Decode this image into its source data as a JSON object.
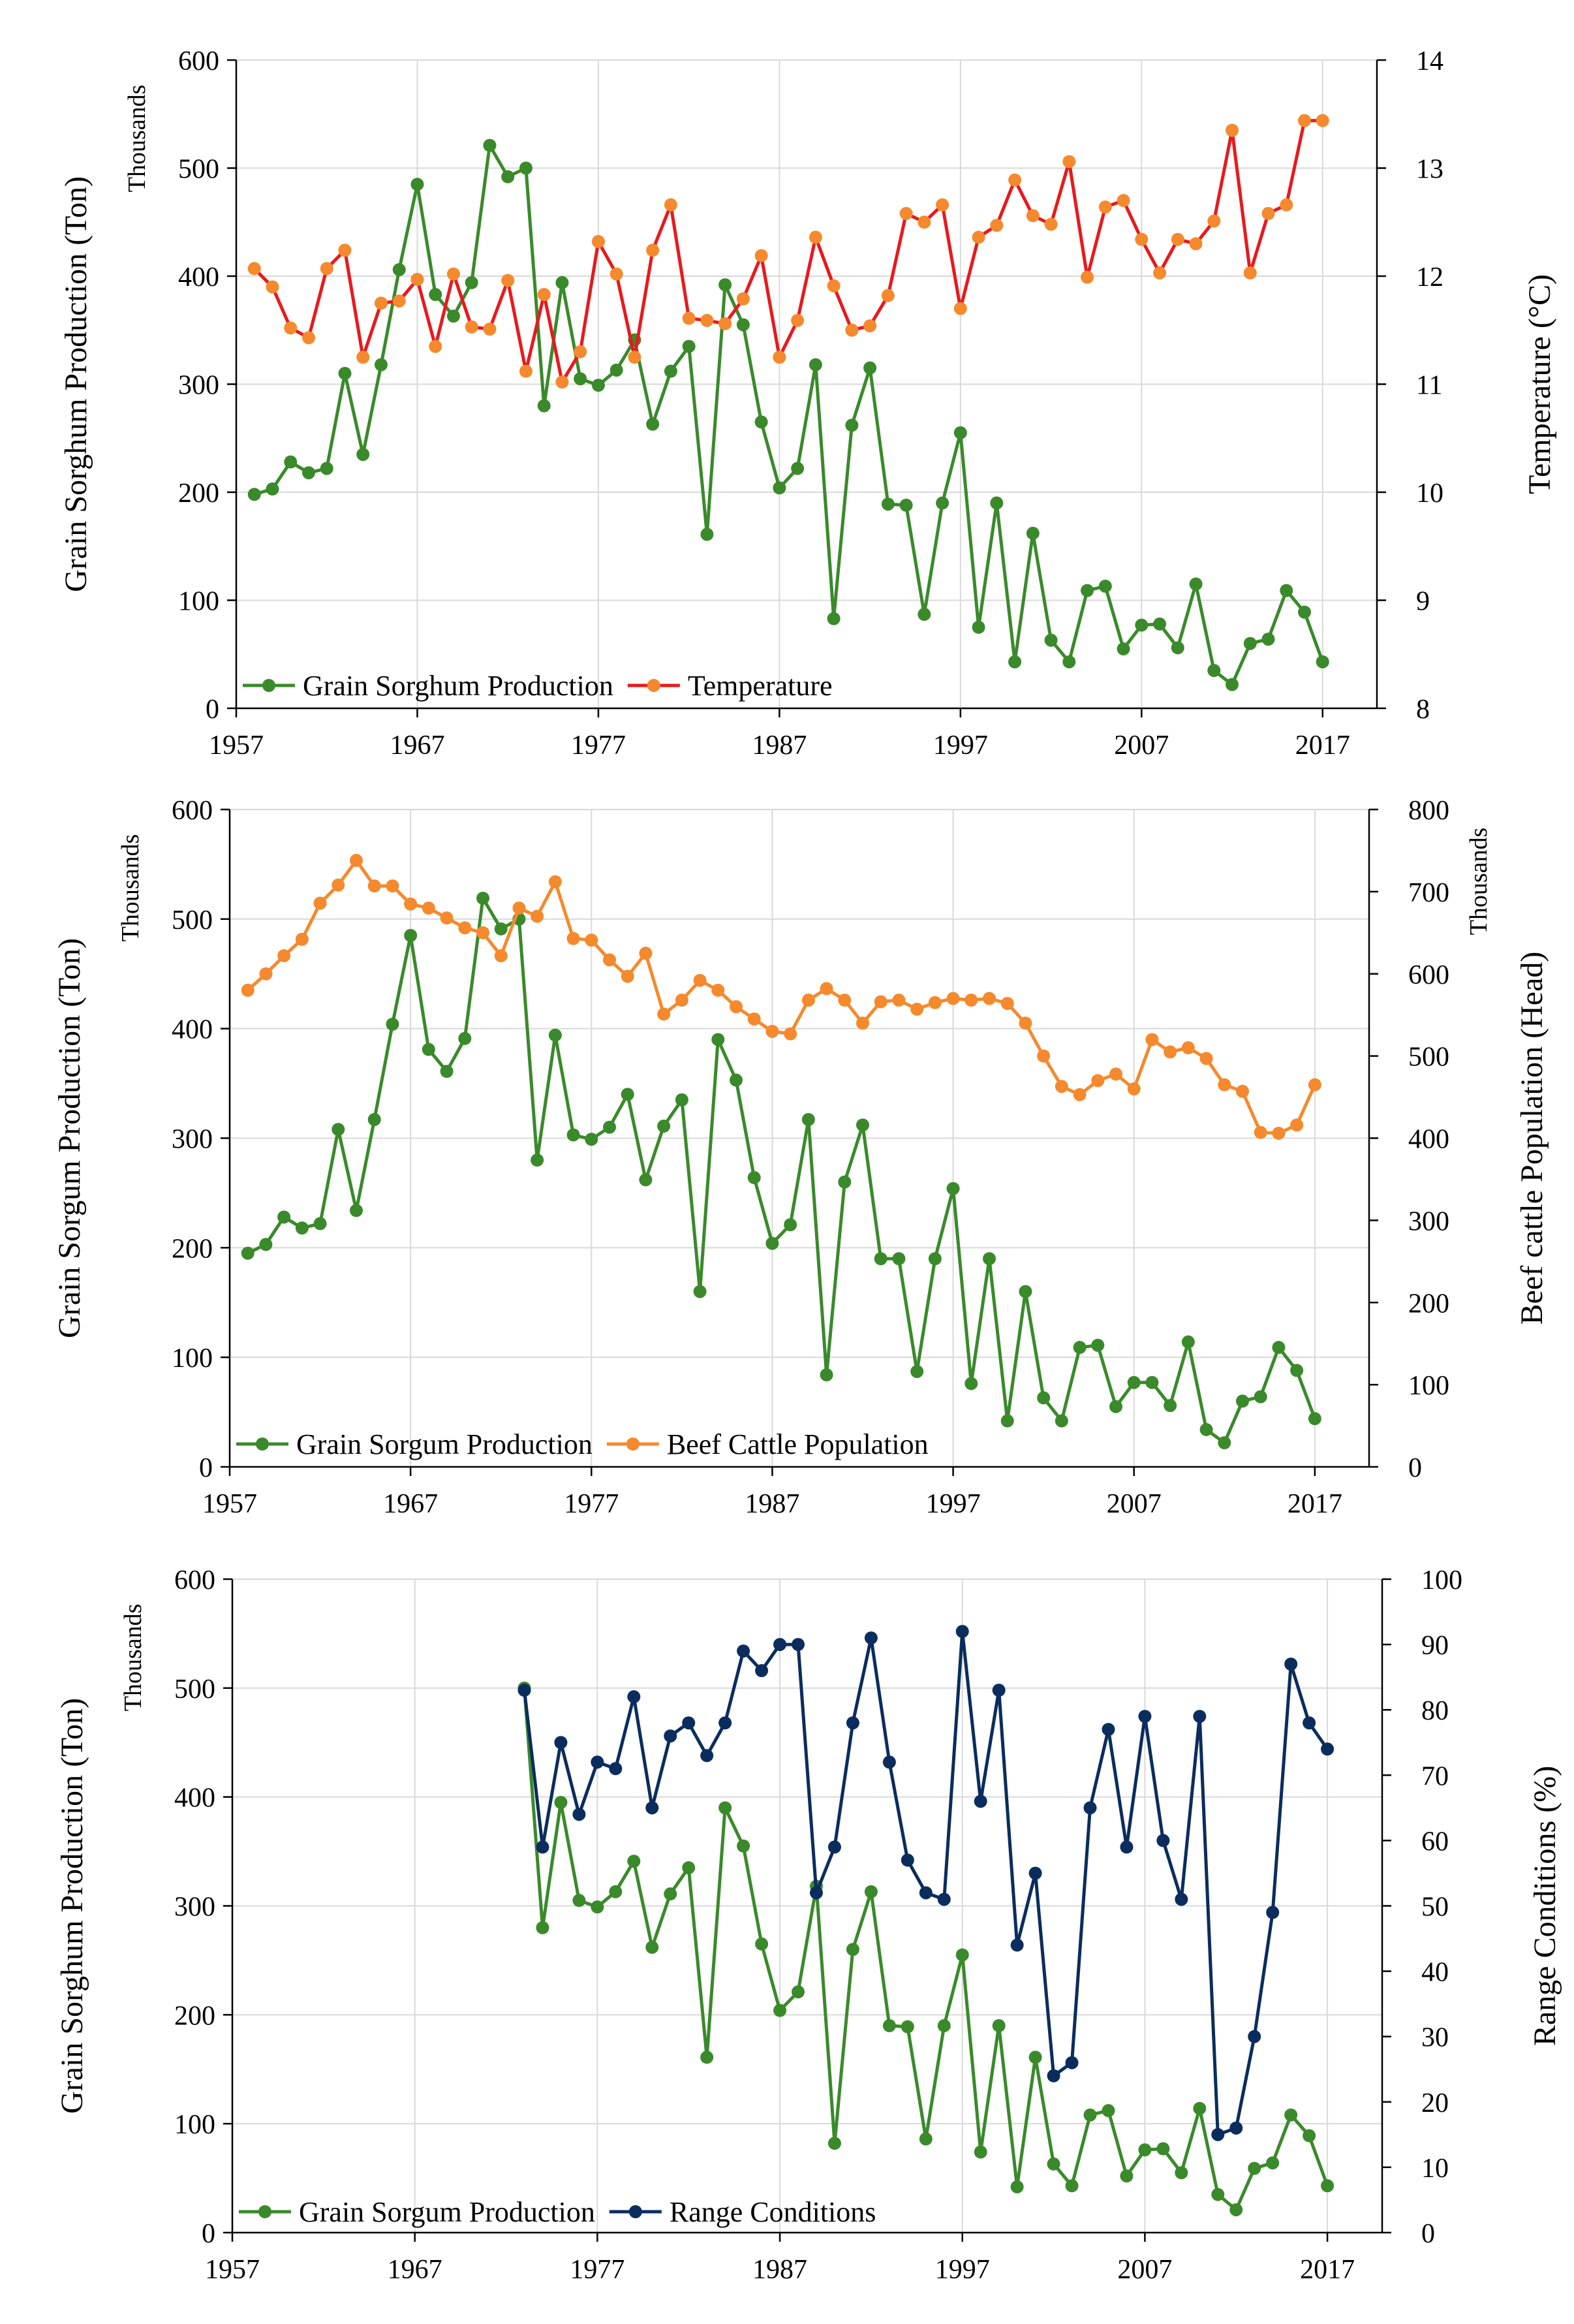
{
  "chart_data": [
    {
      "type": "line",
      "title": "",
      "xlabel": "",
      "ylabel": "Grain Sorghum  Production  (Ton)",
      "ylabel_units": "Thousands",
      "y2label": "Temperature  (°C)",
      "y2label_units": "",
      "xlim": [
        1957,
        2020
      ],
      "xticks": [
        1957,
        1967,
        1977,
        1987,
        1997,
        2007,
        2017
      ],
      "ylim": [
        0,
        600
      ],
      "yticks": [
        0,
        100,
        200,
        300,
        400,
        500,
        600
      ],
      "y2lim": [
        8,
        14
      ],
      "y2ticks": [
        8,
        9,
        10,
        11,
        12,
        13,
        14
      ],
      "legend_placement": "bottom-left",
      "series": [
        {
          "name": "Grain Sorghum Production",
          "axis": "left",
          "color": "#3a8a2b",
          "x": [
            1958,
            1959,
            1960,
            1961,
            1962,
            1963,
            1964,
            1965,
            1966,
            1967,
            1968,
            1969,
            1970,
            1971,
            1972,
            1973,
            1974,
            1975,
            1976,
            1977,
            1978,
            1979,
            1980,
            1981,
            1982,
            1983,
            1984,
            1985,
            1986,
            1987,
            1988,
            1989,
            1990,
            1991,
            1992,
            1993,
            1994,
            1995,
            1996,
            1997,
            1998,
            1999,
            2000,
            2001,
            2002,
            2003,
            2004,
            2005,
            2006,
            2007,
            2008,
            2009,
            2010,
            2011,
            2012,
            2013,
            2014,
            2015,
            2016,
            2017
          ],
          "values": [
            198,
            203,
            228,
            218,
            222,
            310,
            235,
            318,
            406,
            485,
            383,
            363,
            394,
            521,
            492,
            500,
            280,
            394,
            305,
            299,
            313,
            341,
            263,
            312,
            335,
            161,
            392,
            355,
            265,
            204,
            222,
            318,
            83,
            262,
            315,
            189,
            188,
            87,
            190,
            255,
            75,
            190,
            43,
            162,
            63,
            43,
            109,
            113,
            55,
            77,
            78,
            56,
            115,
            35,
            22,
            60,
            64,
            109,
            89,
            43
          ],
          "marker": "circle"
        },
        {
          "name": "Temperature",
          "axis": "right",
          "color": "#e8191c",
          "marker_color": "#f5892d",
          "x": [
            1958,
            1959,
            1960,
            1961,
            1962,
            1963,
            1964,
            1965,
            1966,
            1967,
            1968,
            1969,
            1970,
            1971,
            1972,
            1973,
            1974,
            1975,
            1976,
            1977,
            1978,
            1979,
            1980,
            1981,
            1982,
            1983,
            1984,
            1985,
            1986,
            1987,
            1988,
            1989,
            1990,
            1991,
            1992,
            1993,
            1994,
            1995,
            1996,
            1997,
            1998,
            1999,
            2000,
            2001,
            2002,
            2003,
            2004,
            2005,
            2006,
            2007,
            2008,
            2009,
            2010,
            2011,
            2012,
            2013,
            2014,
            2015,
            2016,
            2017
          ],
          "values": [
            12.07,
            11.9,
            11.52,
            11.43,
            12.07,
            12.24,
            11.25,
            11.75,
            11.77,
            11.97,
            11.35,
            12.02,
            11.53,
            11.51,
            11.96,
            11.12,
            11.83,
            11.02,
            11.3,
            12.32,
            12.02,
            11.25,
            12.24,
            12.66,
            11.61,
            11.59,
            11.56,
            11.79,
            12.19,
            11.25,
            11.59,
            12.36,
            11.91,
            11.5,
            11.54,
            11.82,
            12.58,
            12.5,
            12.66,
            11.7,
            12.36,
            12.47,
            12.89,
            12.56,
            12.48,
            13.06,
            11.99,
            12.64,
            12.7,
            12.34,
            12.03,
            12.34,
            12.3,
            12.51,
            13.35,
            12.03,
            12.58,
            12.66,
            13.44,
            13.44
          ],
          "marker": "circle"
        }
      ]
    },
    {
      "type": "line",
      "title": "",
      "xlabel": "",
      "ylabel": "Grain Sorgum  Production  (Ton)",
      "ylabel_units": "Thousands",
      "y2label": "Beef cattle Population  (Head)",
      "y2label_units": "Thousands",
      "xlim": [
        1957,
        2020
      ],
      "xticks": [
        1957,
        1967,
        1977,
        1987,
        1997,
        2007,
        2017
      ],
      "ylim": [
        0,
        600
      ],
      "yticks": [
        0,
        100,
        200,
        300,
        400,
        500,
        600
      ],
      "y2lim": [
        0,
        800
      ],
      "y2ticks": [
        0,
        100,
        200,
        300,
        400,
        500,
        600,
        700,
        800
      ],
      "legend_placement": "bottom-left",
      "series": [
        {
          "name": "Grain Sorgum Production",
          "axis": "left",
          "color": "#3a8a2b",
          "x": [
            1958,
            1959,
            1960,
            1961,
            1962,
            1963,
            1964,
            1965,
            1966,
            1967,
            1968,
            1969,
            1970,
            1971,
            1972,
            1973,
            1974,
            1975,
            1976,
            1977,
            1978,
            1979,
            1980,
            1981,
            1982,
            1983,
            1984,
            1985,
            1986,
            1987,
            1988,
            1989,
            1990,
            1991,
            1992,
            1993,
            1994,
            1995,
            1996,
            1997,
            1998,
            1999,
            2000,
            2001,
            2002,
            2003,
            2004,
            2005,
            2006,
            2007,
            2008,
            2009,
            2010,
            2011,
            2012,
            2013,
            2014,
            2015,
            2016,
            2017
          ],
          "values": [
            195,
            203,
            228,
            218,
            222,
            308,
            234,
            317,
            404,
            485,
            381,
            361,
            391,
            519,
            491,
            500,
            280,
            394,
            303,
            299,
            310,
            340,
            262,
            311,
            335,
            160,
            390,
            353,
            264,
            204,
            221,
            317,
            84,
            260,
            312,
            190,
            190,
            87,
            190,
            254,
            76,
            190,
            42,
            160,
            63,
            42,
            109,
            111,
            55,
            77,
            77,
            56,
            114,
            34,
            22,
            60,
            64,
            109,
            88,
            44
          ],
          "marker": "circle"
        },
        {
          "name": "Beef Cattle Population",
          "axis": "right",
          "color": "#f5892d",
          "x": [
            1958,
            1959,
            1960,
            1961,
            1962,
            1963,
            1964,
            1965,
            1966,
            1967,
            1968,
            1969,
            1970,
            1971,
            1972,
            1973,
            1974,
            1975,
            1976,
            1977,
            1978,
            1979,
            1980,
            1981,
            1982,
            1983,
            1984,
            1985,
            1986,
            1987,
            1988,
            1989,
            1990,
            1991,
            1992,
            1993,
            1994,
            1995,
            1996,
            1997,
            1998,
            1999,
            2000,
            2001,
            2002,
            2003,
            2004,
            2005,
            2006,
            2007,
            2008,
            2009,
            2010,
            2011,
            2012,
            2013,
            2014,
            2015,
            2016,
            2017
          ],
          "values": [
            580,
            600,
            622,
            642,
            686,
            708,
            738,
            707,
            707,
            685,
            680,
            668,
            656,
            650,
            622,
            680,
            670,
            712,
            643,
            641,
            617,
            597,
            625,
            551,
            568,
            592,
            580,
            560,
            545,
            530,
            527,
            568,
            582,
            568,
            540,
            566,
            568,
            557,
            565,
            570,
            568,
            570,
            564,
            540,
            500,
            463,
            453,
            470,
            478,
            460,
            520,
            505,
            510,
            497,
            465,
            457,
            407,
            406,
            416,
            465
          ],
          "marker": "circle"
        }
      ]
    },
    {
      "type": "line",
      "title": "",
      "xlabel": "",
      "ylabel": "Grain Sorghum  Production  (Ton)",
      "ylabel_units": "Thousands",
      "y2label": "Range Conditions  (%)",
      "y2label_units": "",
      "xlim": [
        1957,
        2020
      ],
      "xticks": [
        1957,
        1967,
        1977,
        1987,
        1997,
        2007,
        2017
      ],
      "ylim": [
        0,
        600
      ],
      "yticks": [
        0,
        100,
        200,
        300,
        400,
        500,
        600
      ],
      "y2lim": [
        0,
        100
      ],
      "y2ticks": [
        0,
        10,
        20,
        30,
        40,
        50,
        60,
        70,
        80,
        90,
        100
      ],
      "legend_placement": "bottom-left",
      "series": [
        {
          "name": "Grain Sorgum Production",
          "axis": "left",
          "color": "#3a8a2b",
          "x": [
            1973,
            1974,
            1975,
            1976,
            1977,
            1978,
            1979,
            1980,
            1981,
            1982,
            1983,
            1984,
            1985,
            1986,
            1987,
            1988,
            1989,
            1990,
            1991,
            1992,
            1993,
            1994,
            1995,
            1996,
            1997,
            1998,
            1999,
            2000,
            2001,
            2002,
            2003,
            2004,
            2005,
            2006,
            2007,
            2008,
            2009,
            2010,
            2011,
            2012,
            2013,
            2014,
            2015,
            2016,
            2017
          ],
          "values": [
            500,
            280,
            395,
            305,
            299,
            313,
            341,
            262,
            311,
            335,
            161,
            390,
            355,
            265,
            204,
            221,
            318,
            82,
            260,
            313,
            190,
            189,
            86,
            190,
            255,
            74,
            190,
            42,
            161,
            63,
            43,
            108,
            112,
            52,
            76,
            77,
            55,
            114,
            35,
            21,
            59,
            64,
            108,
            89,
            43
          ],
          "marker": "circle"
        },
        {
          "name": "Range Conditions",
          "axis": "right",
          "color": "#0b2d5e",
          "x": [
            1973,
            1974,
            1975,
            1976,
            1977,
            1978,
            1979,
            1980,
            1981,
            1982,
            1983,
            1984,
            1985,
            1986,
            1987,
            1988,
            1989,
            1990,
            1991,
            1992,
            1993,
            1994,
            1995,
            1996,
            1997,
            1998,
            1999,
            2000,
            2001,
            2002,
            2003,
            2004,
            2005,
            2006,
            2007,
            2008,
            2009,
            2010,
            2011,
            2012,
            2013,
            2014,
            2015,
            2016,
            2017
          ],
          "values": [
            83,
            59,
            75,
            64,
            72,
            71,
            82,
            65,
            76,
            78,
            73,
            78,
            89,
            86,
            90,
            90,
            52,
            59,
            78,
            91,
            72,
            57,
            52,
            51,
            92,
            66,
            83,
            44,
            55,
            24,
            26,
            65,
            77,
            59,
            79,
            60,
            51,
            79,
            15,
            16,
            30,
            49,
            87,
            78,
            74
          ],
          "marker": "circle"
        }
      ]
    }
  ]
}
